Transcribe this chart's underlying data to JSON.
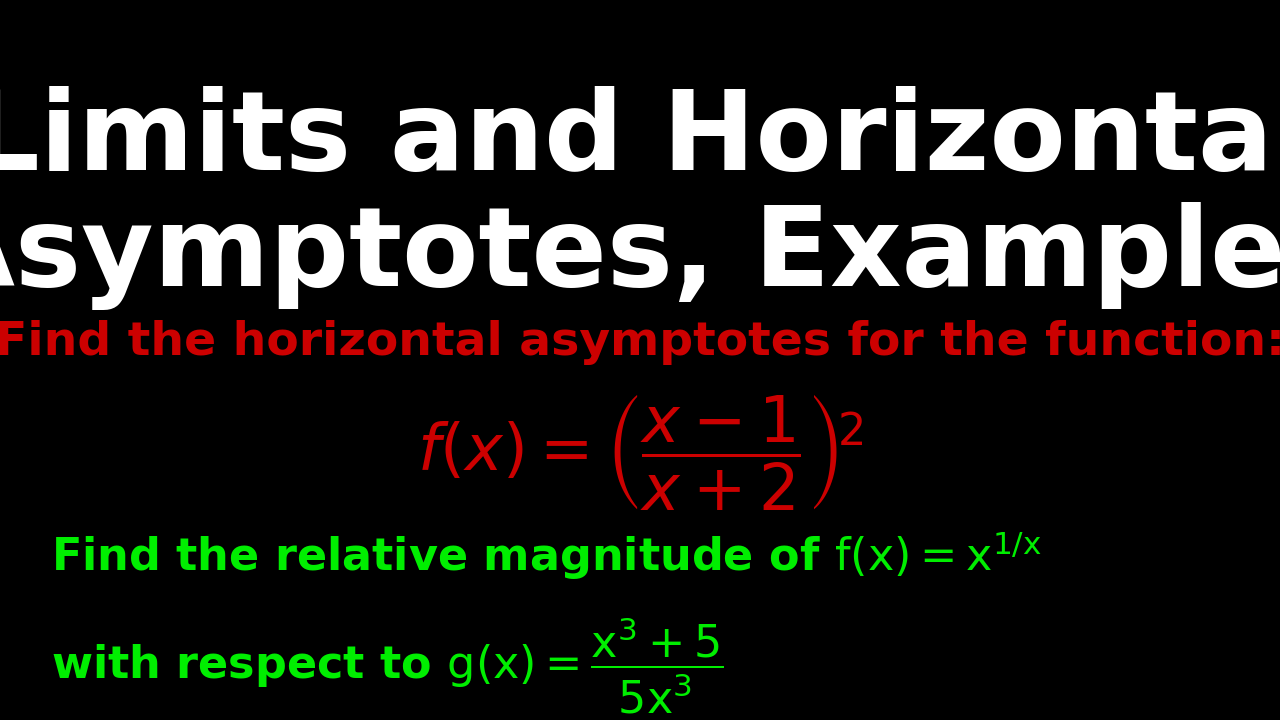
{
  "background_color": "#000000",
  "title_line1": "Limits and Horizontal",
  "title_line2": "Asymptotes, Examples",
  "title_color": "#ffffff",
  "title_fontsize": 80,
  "subtitle": "Find the horizontal asymptotes for the function:",
  "subtitle_color": "#cc0000",
  "subtitle_fontsize": 34,
  "formula1_color": "#cc0000",
  "formula1_fontsize": 46,
  "green_color": "#00ee00",
  "green_fontsize": 32
}
